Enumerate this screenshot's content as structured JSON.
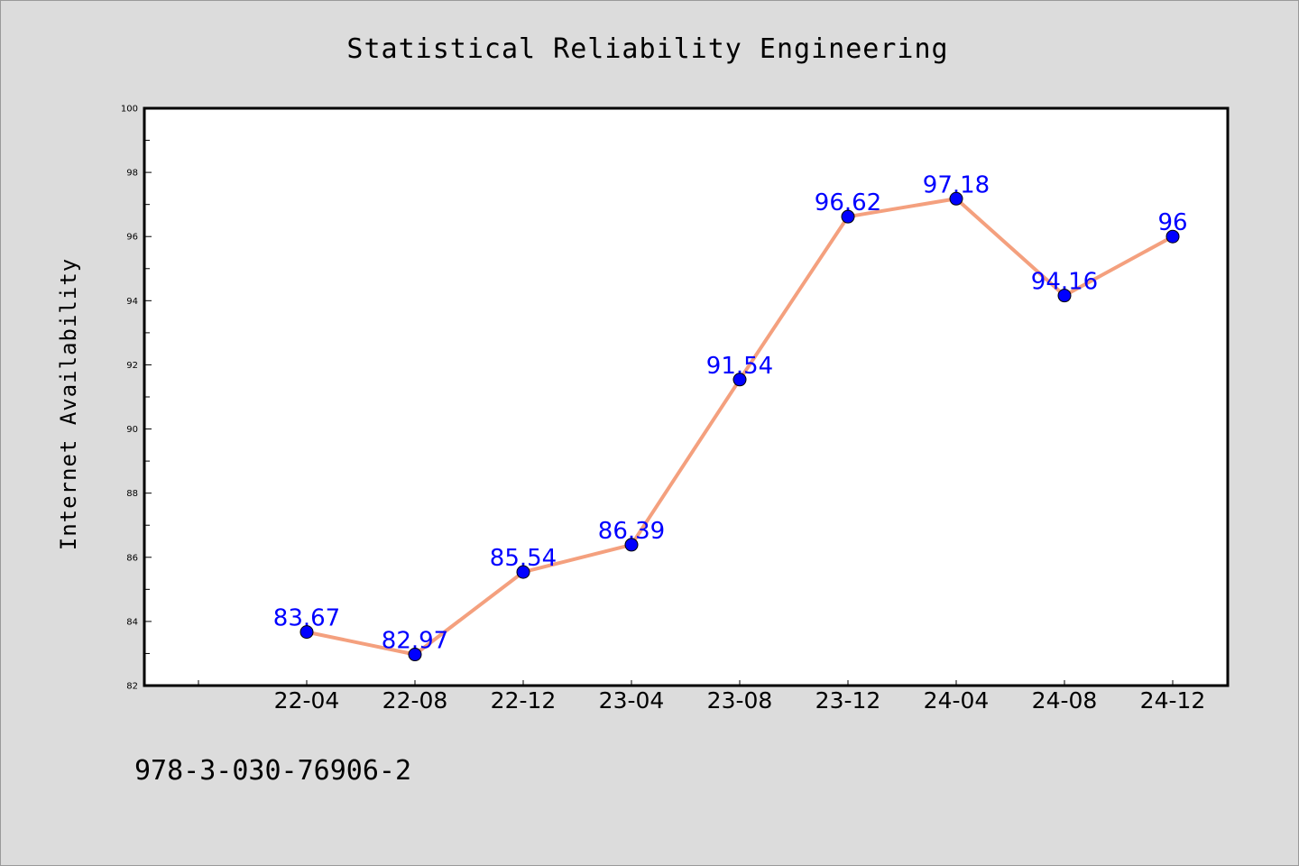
{
  "chart_data": {
    "type": "line",
    "title": "Statistical Reliability Engineering",
    "xlabel": "",
    "ylabel": "Internet Availability",
    "categories": [
      "22-04",
      "22-08",
      "22-12",
      "23-04",
      "23-08",
      "23-12",
      "24-04",
      "24-08",
      "24-12"
    ],
    "series": [
      {
        "values": [
          83.67,
          82.97,
          85.54,
          86.39,
          91.54,
          96.62,
          97.18,
          94.16,
          96
        ],
        "data_labels": [
          "83.67",
          "82.97",
          "85.54",
          "86.39",
          "91.54",
          "96.62",
          "97.18",
          "94.16",
          "96"
        ]
      }
    ],
    "y_ticks": [
      "82",
      "84",
      "86",
      "88",
      "90",
      "92",
      "94",
      "96",
      "98",
      "100"
    ],
    "ylim": [
      82,
      100
    ],
    "grid": false,
    "legend": "none",
    "colors": {
      "line": "#f4a07e",
      "marker": "#0000ff",
      "label": "#0000ff",
      "plot_bg": "#ffffff",
      "page_bg": "#dcdcdc"
    }
  },
  "footer_text": "978-3-030-76906-2"
}
